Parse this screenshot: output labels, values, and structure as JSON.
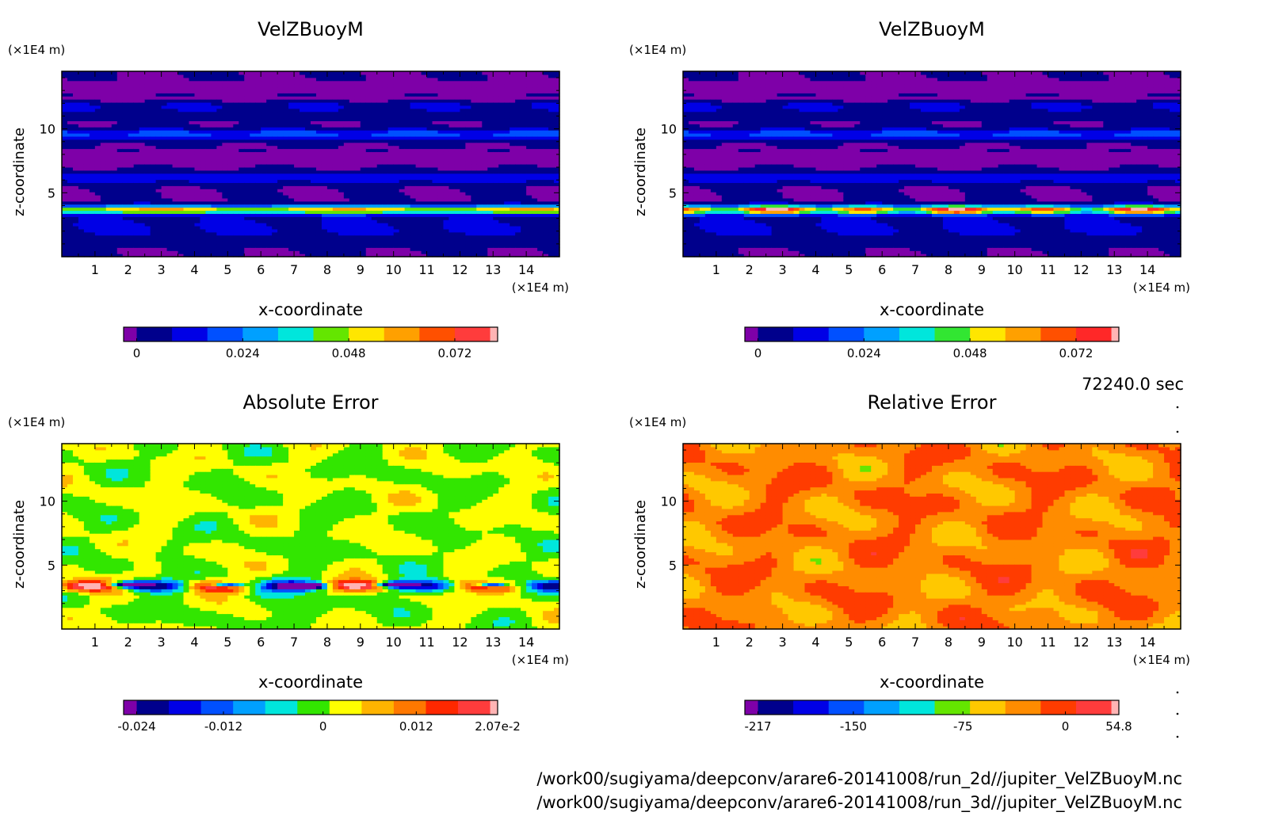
{
  "time_label": "72240.0 sec",
  "file_paths": [
    "/work00/sugiyama/deepconv/arare6-20141008/run_2d//jupiter_VelZBuoyM.nc",
    "/work00/sugiyama/deepconv/arare6-20141008/run_3d//jupiter_VelZBuoyM.nc"
  ],
  "chart_data": [
    {
      "type": "heatmap",
      "title": "VelZBuoyM",
      "xlabel": "x-coordinate",
      "ylabel": "z-coordinate",
      "x_unit": "(×1E4 m)",
      "y_unit": "(×1E4 m)",
      "xlim": [
        0,
        15
      ],
      "ylim": [
        0,
        14.5
      ],
      "x_ticks": [
        "1",
        "2",
        "3",
        "4",
        "5",
        "6",
        "7",
        "8",
        "9",
        "10",
        "11",
        "12",
        "13",
        "14"
      ],
      "y_ticks": [
        "5",
        "10"
      ],
      "colorbar": {
        "colors": [
          "#7e00a8",
          "#00008c",
          "#0000e6",
          "#0050ff",
          "#00a0ff",
          "#00e6dc",
          "#64e600",
          "#ffe600",
          "#ffa000",
          "#ff5000",
          "#ff3c3c",
          "#ffb4b4"
        ],
        "tick_labels": [
          "0",
          "0.024",
          "0.048",
          "0.072"
        ],
        "range": [
          -0.003,
          0.081
        ]
      }
    },
    {
      "type": "heatmap",
      "title": "VelZBuoyM",
      "xlabel": "x-coordinate",
      "ylabel": "z-coordinate",
      "x_unit": "(×1E4 m)",
      "y_unit": "(×1E4 m)",
      "xlim": [
        0,
        15
      ],
      "ylim": [
        0,
        14.5
      ],
      "x_ticks": [
        "1",
        "2",
        "3",
        "4",
        "5",
        "6",
        "7",
        "8",
        "9",
        "10",
        "11",
        "12",
        "13",
        "14"
      ],
      "y_ticks": [
        "5",
        "10"
      ],
      "colorbar": {
        "colors": [
          "#7e00a8",
          "#00008c",
          "#0000e6",
          "#0050ff",
          "#00a0ff",
          "#00e6dc",
          "#32e632",
          "#ffe600",
          "#ffa000",
          "#ff5000",
          "#ff2828",
          "#ffb4b4"
        ],
        "tick_labels": [
          "0",
          "0.024",
          "0.048",
          "0.072"
        ],
        "range": [
          -0.003,
          0.081
        ]
      }
    },
    {
      "type": "heatmap",
      "title": "Absolute Error",
      "xlabel": "x-coordinate",
      "ylabel": "z-coordinate",
      "x_unit": "(×1E4 m)",
      "y_unit": "(×1E4 m)",
      "xlim": [
        0,
        15
      ],
      "ylim": [
        0,
        14.5
      ],
      "x_ticks": [
        "1",
        "2",
        "3",
        "4",
        "5",
        "6",
        "7",
        "8",
        "9",
        "10",
        "11",
        "12",
        "13",
        "14"
      ],
      "y_ticks": [
        "5",
        "10"
      ],
      "colorbar": {
        "colors": [
          "#7e00a8",
          "#00008c",
          "#0000e6",
          "#0050ff",
          "#00a0ff",
          "#00e6dc",
          "#32e600",
          "#ffff00",
          "#ffb400",
          "#ff7800",
          "#ff2800",
          "#ff3c3c",
          "#ffb4b4"
        ],
        "tick_labels": [
          "-0.024",
          "-0.012",
          "0",
          "0.012",
          "2.07e-2"
        ],
        "range": [
          -0.0245,
          0.0207
        ]
      }
    },
    {
      "type": "heatmap",
      "title": "Relative Error",
      "xlabel": "x-coordinate",
      "ylabel": "z-coordinate",
      "x_unit": "(×1E4 m)",
      "y_unit": "(×1E4 m)",
      "xlim": [
        0,
        15
      ],
      "ylim": [
        0,
        14.5
      ],
      "x_ticks": [
        "1",
        "2",
        "3",
        "4",
        "5",
        "6",
        "7",
        "8",
        "9",
        "10",
        "11",
        "12",
        "13",
        "14"
      ],
      "y_ticks": [
        "5",
        "10"
      ],
      "colorbar": {
        "colors": [
          "#7e00a8",
          "#00008c",
          "#0000e6",
          "#0050ff",
          "#00a0ff",
          "#00e6dc",
          "#64e600",
          "#ffc800",
          "#ff8c00",
          "#ff3c00",
          "#ff3c3c",
          "#ffb4b4"
        ],
        "tick_labels": [
          "-217",
          "-150",
          "-75",
          "0",
          "54.8"
        ],
        "range": [
          -217,
          54.8
        ]
      }
    }
  ]
}
